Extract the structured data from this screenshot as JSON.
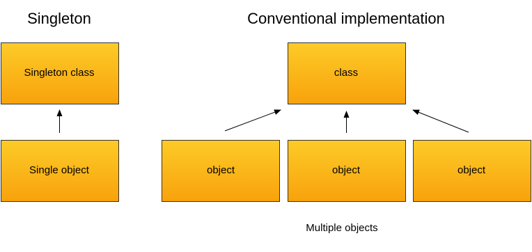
{
  "titles": [
    "Singleton",
    "Conventional implementation"
  ],
  "nodes": [
    {
      "label": "Singleton class"
    },
    {
      "label": "Single object"
    },
    {
      "label": "class"
    },
    {
      "label": "object"
    },
    {
      "label": "object"
    },
    {
      "label": "object"
    }
  ],
  "caption": "Multiple objects"
}
